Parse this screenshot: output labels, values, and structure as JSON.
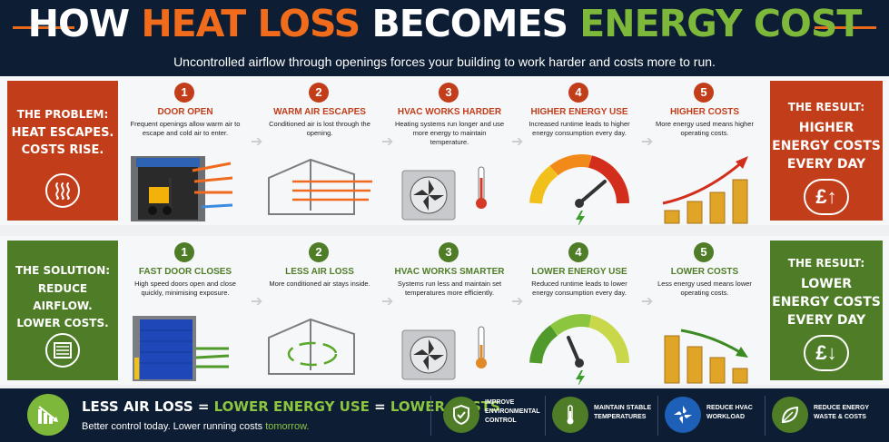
{
  "header": {
    "title_pre": "HOW ",
    "title_heat": "HEAT LOSS",
    "title_mid": " BECOMES ",
    "title_energy": "ENERGY COST",
    "subtitle": "Uncontrolled airflow through openings forces your building to work harder and costs more to run."
  },
  "problem": {
    "label": "THE PROBLEM:",
    "headline": "HEAT ESCAPES.\nCOSTS RISE.",
    "icon": "heat-waves-icon",
    "result_label": "THE RESULT:",
    "result_text": "HIGHER\nENERGY COSTS\nEVERY DAY",
    "result_icon": "pound-up-icon",
    "steps": [
      {
        "num": "1",
        "title": "DOOR OPEN",
        "desc": "Frequent openings allow warm air to escape and cold air to enter."
      },
      {
        "num": "2",
        "title": "WARM AIR ESCAPES",
        "desc": "Conditioned air is lost through the opening."
      },
      {
        "num": "3",
        "title": "HVAC WORKS HARDER",
        "desc": "Heating systems run longer and use more energy to maintain temperature."
      },
      {
        "num": "4",
        "title": "HIGHER ENERGY USE",
        "desc": "Increased runtime leads to higher energy consumption every day."
      },
      {
        "num": "5",
        "title": "HIGHER COSTS",
        "desc": "More energy used means higher operating costs."
      }
    ]
  },
  "solution": {
    "label": "THE SOLUTION:",
    "headline": "REDUCE AIRFLOW.\nLOWER COSTS.",
    "icon": "roller-door-icon",
    "result_label": "THE RESULT:",
    "result_text": "LOWER\nENERGY COSTS\nEVERY DAY",
    "result_icon": "pound-down-icon",
    "steps": [
      {
        "num": "1",
        "title": "FAST DOOR CLOSES",
        "desc": "High speed doors open and close quickly, minimising exposure."
      },
      {
        "num": "2",
        "title": "LESS AIR LOSS",
        "desc": "More conditioned air stays inside."
      },
      {
        "num": "3",
        "title": "HVAC WORKS SMARTER",
        "desc": "Systems run less and maintain set temperatures more efficiently."
      },
      {
        "num": "4",
        "title": "LOWER ENERGY USE",
        "desc": "Reduced runtime leads to lower energy consumption every day."
      },
      {
        "num": "5",
        "title": "LOWER COSTS",
        "desc": "Less energy used means lower operating costs."
      }
    ]
  },
  "bottom": {
    "eq1": "LESS AIR LOSS",
    "eq2": " = ",
    "eq3": "LOWER ENERGY USE",
    "eq4": " = ",
    "eq5": "LOWER COSTS",
    "tag1": "Better control today. Lower running costs ",
    "tag2": "tomorrow.",
    "items": [
      {
        "icon": "shield-check-icon",
        "text": "IMPROVE\nENVIRONMENTAL\nCONTROL"
      },
      {
        "icon": "thermometer-icon",
        "text": "MAINTAIN STABLE\nTEMPERATURES"
      },
      {
        "icon": "fan-icon",
        "text": "REDUCE HVAC\nWORKLOAD"
      },
      {
        "icon": "leaf-icon",
        "text": "REDUCE ENERGY\nWASTE & COSTS"
      }
    ]
  },
  "colors": {
    "navy": "#0d1d33",
    "orange": "#f06c1c",
    "green": "#7db83a",
    "red_panel": "#c23e1b",
    "green_panel": "#4f7d27"
  }
}
